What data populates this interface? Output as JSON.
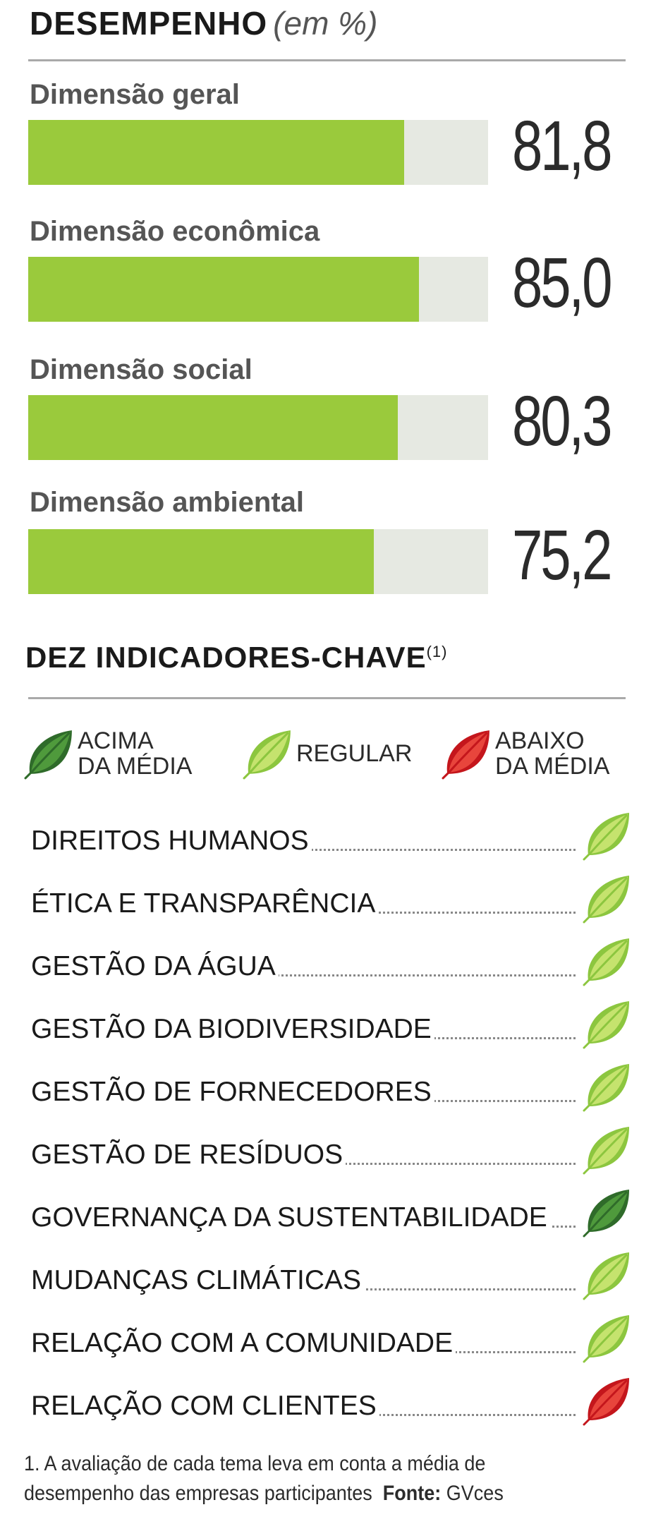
{
  "header": {
    "title": "DESEMPENHO",
    "subtitle": "(em %)"
  },
  "chart_data": {
    "type": "bar",
    "orientation": "horizontal",
    "categories": [
      "Dimensão geral",
      "Dimensão econômica",
      "Dimensão social",
      "Dimensão ambiental"
    ],
    "values": [
      81.8,
      85.0,
      80.3,
      75.2
    ],
    "value_labels": [
      "81,8",
      "85,0",
      "80,3",
      "75,2"
    ],
    "xlim": [
      0,
      100
    ],
    "colors": {
      "bar": "#9aca3c",
      "track": "#e6e9e2"
    }
  },
  "indicators": {
    "title": "DEZ INDICADORES-CHAVE",
    "note_ref": "(1)",
    "legend": [
      {
        "line1": "ACIMA",
        "line2": "DA MÉDIA",
        "level": "acima",
        "icon": "dark-green-leaf-icon"
      },
      {
        "line1": "REGULAR",
        "line2": "",
        "level": "regular",
        "icon": "light-green-leaf-icon"
      },
      {
        "line1": "ABAIXO",
        "line2": "DA MÉDIA",
        "level": "abaixo",
        "icon": "red-leaf-icon"
      }
    ],
    "items": [
      {
        "label": "DIREITOS HUMANOS",
        "level": "regular"
      },
      {
        "label": "ÉTICA E TRANSPARÊNCIA",
        "level": "regular"
      },
      {
        "label": "GESTÃO DA ÁGUA",
        "level": "regular"
      },
      {
        "label": "GESTÃO DA BIODIVERSIDADE",
        "level": "regular"
      },
      {
        "label": "GESTÃO DE FORNECEDORES",
        "level": "regular"
      },
      {
        "label": "GESTÃO DE RESÍDUOS",
        "level": "regular"
      },
      {
        "label": "GOVERNANÇA DA SUSTENTABILIDADE",
        "level": "acima"
      },
      {
        "label": "MUDANÇAS CLIMÁTICAS",
        "level": "regular"
      },
      {
        "label": "RELAÇÃO COM A COMUNIDADE",
        "level": "regular"
      },
      {
        "label": "RELAÇÃO COM CLIENTES",
        "level": "abaixo"
      }
    ],
    "level_colors": {
      "acima": {
        "base": "#2f6b2a",
        "light": "#4f9a3c"
      },
      "regular": {
        "base": "#8cc63f",
        "light": "#c5e36e"
      },
      "abaixo": {
        "base": "#c4161c",
        "light": "#e8453c"
      }
    }
  },
  "footnote": {
    "line1": "1. A avaliação de cada tema leva em conta a média de",
    "line2": "desempenho das empresas participantes",
    "source_label": "Fonte:",
    "source": "GVces"
  }
}
